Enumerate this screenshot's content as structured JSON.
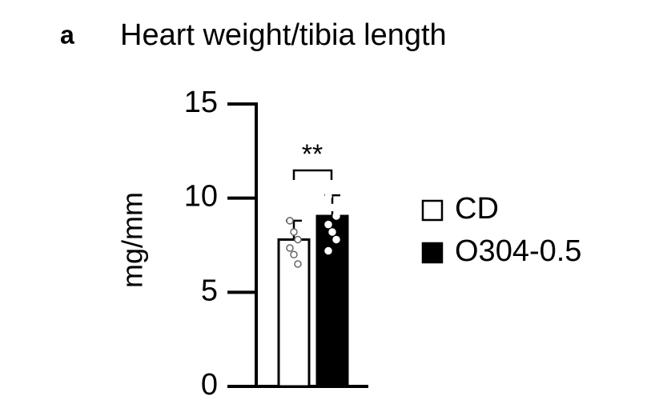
{
  "chart_data": {
    "type": "bar",
    "panel_label": "a",
    "title": "Heart weight/tibia length",
    "ylabel": "mg/mm",
    "ylim": [
      0,
      15
    ],
    "yticks": [
      0,
      5,
      10,
      15
    ],
    "annotation": "**",
    "series": [
      {
        "name": "CD",
        "color": "#ffffff",
        "values": [
          7.8
        ],
        "errors": [
          1.0
        ],
        "points": [
          8.8,
          8.2,
          7.8,
          7.35,
          7.0,
          6.5
        ]
      },
      {
        "name": "O304-0.5",
        "color": "#000000",
        "values": [
          9.05
        ],
        "errors": [
          1.1
        ],
        "points": [
          10.1,
          9.5,
          9.05,
          8.6,
          8.2,
          7.8,
          7.2
        ]
      }
    ]
  }
}
